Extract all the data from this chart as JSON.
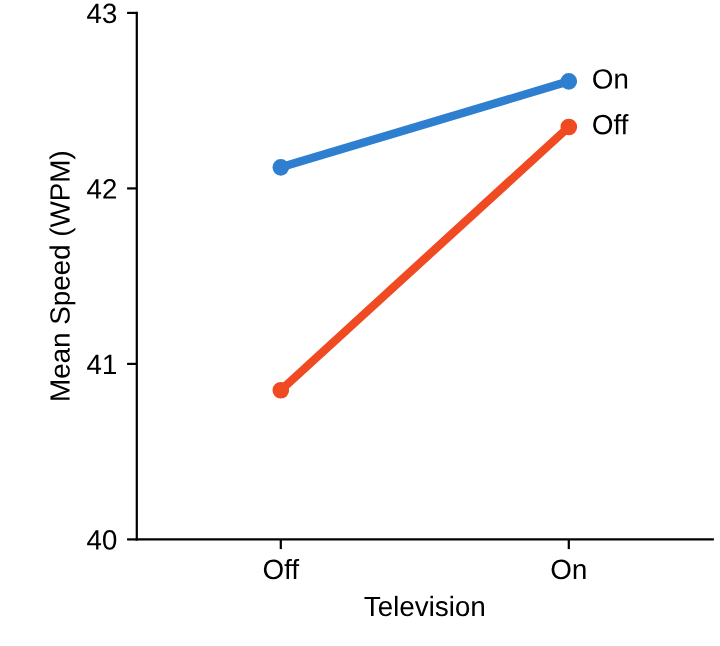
{
  "chart_data": {
    "type": "line",
    "xlabel": "Television",
    "ylabel": "Mean Speed (WPM)",
    "categories": [
      "Off",
      "On"
    ],
    "series": [
      {
        "name": "On",
        "color": "#2f7fd0",
        "values": [
          42.12,
          42.61
        ]
      },
      {
        "name": "Off",
        "color": "#f04a23",
        "values": [
          40.85,
          42.35
        ]
      }
    ],
    "ylim": [
      40,
      43
    ],
    "yticks": [
      40,
      41,
      42,
      43
    ],
    "marker": "circle",
    "line_style": "solid",
    "grid": false,
    "legend": false
  }
}
